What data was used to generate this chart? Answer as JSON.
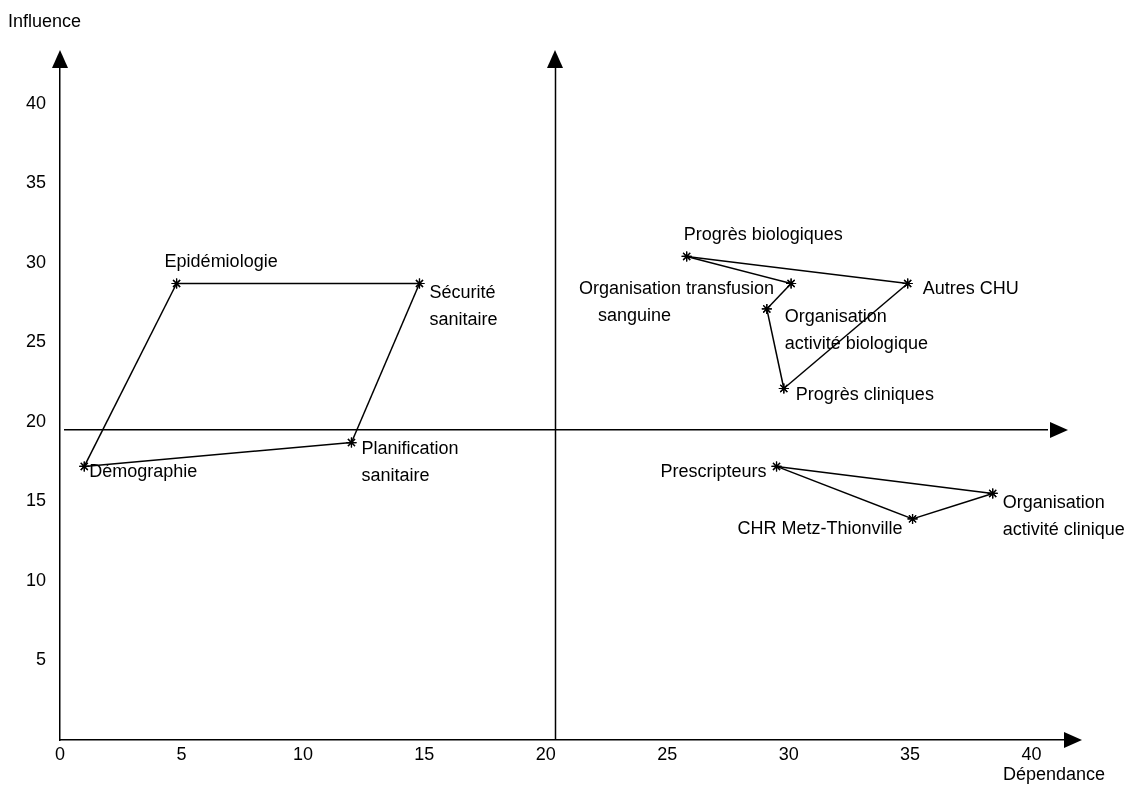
{
  "chart_data": {
    "type": "line",
    "xlabel": "Dépendance",
    "ylabel": "Influence",
    "xlim": [
      0,
      41.5
    ],
    "ylim": [
      0,
      42.5
    ],
    "xticks": [
      0,
      5,
      10,
      15,
      20,
      25,
      30,
      35,
      40
    ],
    "yticks": [
      5,
      10,
      15,
      20,
      25,
      30,
      35,
      40
    ],
    "marker": "cross",
    "line_style": "solid",
    "series": [
      {
        "color": "#000000",
        "x": [
          1.0,
          4.8
        ],
        "values": [
          17.2,
          28.7
        ]
      },
      {
        "color": "#000000",
        "x": [
          4.8,
          14.8
        ],
        "values": [
          28.7,
          28.7
        ]
      },
      {
        "color": "#000000",
        "x": [
          12.0,
          14.8
        ],
        "values": [
          18.7,
          28.7
        ]
      },
      {
        "color": "#000000",
        "x": [
          1.0,
          12.0
        ],
        "values": [
          17.2,
          18.7
        ]
      },
      {
        "color": "#000000",
        "x": [
          25.8,
          30.1
        ],
        "values": [
          30.4,
          28.7
        ]
      },
      {
        "color": "#000000",
        "x": [
          29.1,
          30.1
        ],
        "values": [
          27.1,
          28.7
        ]
      },
      {
        "color": "#000000",
        "x": [
          29.1,
          29.8
        ],
        "values": [
          27.1,
          22.1
        ]
      },
      {
        "color": "#000000",
        "x": [
          29.8,
          34.9
        ],
        "values": [
          22.1,
          28.7
        ]
      },
      {
        "color": "#000000",
        "x": [
          25.8,
          34.9
        ],
        "values": [
          30.4,
          28.7
        ]
      },
      {
        "color": "#000000",
        "x": [
          29.5,
          38.4
        ],
        "values": [
          17.2,
          15.5
        ]
      },
      {
        "color": "#000000",
        "x": [
          35.1,
          38.4
        ],
        "values": [
          13.9,
          15.5
        ]
      },
      {
        "color": "#000000",
        "x": [
          29.5,
          35.1
        ],
        "values": [
          17.2,
          13.9
        ]
      }
    ],
    "ref_lines": [
      {
        "axis": "x",
        "value": 20.4,
        "color": "#000000"
      },
      {
        "axis": "y",
        "value": 19.5,
        "color": "#000000"
      }
    ],
    "annotations": [
      {
        "text": "Epidémiologie",
        "x": 4.8,
        "y": 28.7
      },
      {
        "text": "Sécurité\nsanitaire",
        "x": 14.8,
        "y": 28.7
      },
      {
        "text": "Planification\nsanitaire",
        "x": 12.0,
        "y": 18.7
      },
      {
        "text": "Démographie",
        "x": 1.0,
        "y": 17.2
      },
      {
        "text": "Progrès biologiques",
        "x": 25.8,
        "y": 30.4
      },
      {
        "text": "Organisation transfusion\nsanguine",
        "x": 30.1,
        "y": 28.7
      },
      {
        "text": "Organisation\nactivité biologique",
        "x": 29.1,
        "y": 27.1
      },
      {
        "text": "Progrès cliniques",
        "x": 29.8,
        "y": 22.1
      },
      {
        "text": "Autres CHU",
        "x": 34.9,
        "y": 28.7
      },
      {
        "text": "Prescripteurs",
        "x": 29.5,
        "y": 17.2
      },
      {
        "text": "Organisation\nactivité clinique",
        "x": 38.4,
        "y": 15.5
      },
      {
        "text": "CHR Metz-Thionville",
        "x": 35.1,
        "y": 13.9
      }
    ]
  }
}
